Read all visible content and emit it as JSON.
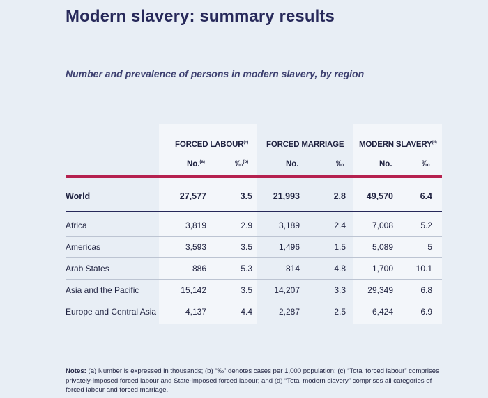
{
  "page": {
    "title": "Modern slavery: summary results",
    "subtitle": "Number and prevalence of persons in modern slavery, by region"
  },
  "table": {
    "groups": [
      {
        "label": "FORCED LABOUR",
        "note": "(c)"
      },
      {
        "label": "FORCED MARRIAGE",
        "note": ""
      },
      {
        "label": "MODERN SLAVERY",
        "note": "(d)"
      }
    ],
    "subheaders": [
      {
        "label": "No.",
        "note": "(a)"
      },
      {
        "label": "‰",
        "note": "(b)"
      },
      {
        "label": "No.",
        "note": ""
      },
      {
        "label": "‰",
        "note": ""
      },
      {
        "label": "No.",
        "note": ""
      },
      {
        "label": "‰",
        "note": ""
      }
    ],
    "rows": [
      {
        "region": "World",
        "fl_no": "27,577",
        "fl_pm": "3.5",
        "fm_no": "21,993",
        "fm_pm": "2.8",
        "ms_no": "49,570",
        "ms_pm": "6.4"
      },
      {
        "region": "Africa",
        "fl_no": "3,819",
        "fl_pm": "2.9",
        "fm_no": "3,189",
        "fm_pm": "2.4",
        "ms_no": "7,008",
        "ms_pm": "5.2"
      },
      {
        "region": "Americas",
        "fl_no": "3,593",
        "fl_pm": "3.5",
        "fm_no": "1,496",
        "fm_pm": "1.5",
        "ms_no": "5,089",
        "ms_pm": "5"
      },
      {
        "region": "Arab States",
        "fl_no": "886",
        "fl_pm": "5.3",
        "fm_no": "814",
        "fm_pm": "4.8",
        "ms_no": "1,700",
        "ms_pm": "10.1"
      },
      {
        "region": "Asia and the Pacific",
        "fl_no": "15,142",
        "fl_pm": "3.5",
        "fm_no": "14,207",
        "fm_pm": "3.3",
        "ms_no": "29,349",
        "ms_pm": "6.8"
      },
      {
        "region": "Europe and Central Asia",
        "fl_no": "4,137",
        "fl_pm": "4.4",
        "fm_no": "2,287",
        "fm_pm": "2.5",
        "ms_no": "6,424",
        "ms_pm": "6.9"
      }
    ]
  },
  "notes": {
    "label": "Notes:",
    "text": " (a) Number is expressed in thousands; (b) “‰” denotes cases per 1,000 population; (c) “Total forced labour” comprises privately-imposed forced labour and State-imposed forced labour; and (d) “Total modern slavery” comprises all categories of forced labour and forced marriage."
  },
  "colors": {
    "accent_red": "#b5214f",
    "navy": "#27295a",
    "background": "#e8eef5",
    "column_band": "#f3f6fa"
  }
}
